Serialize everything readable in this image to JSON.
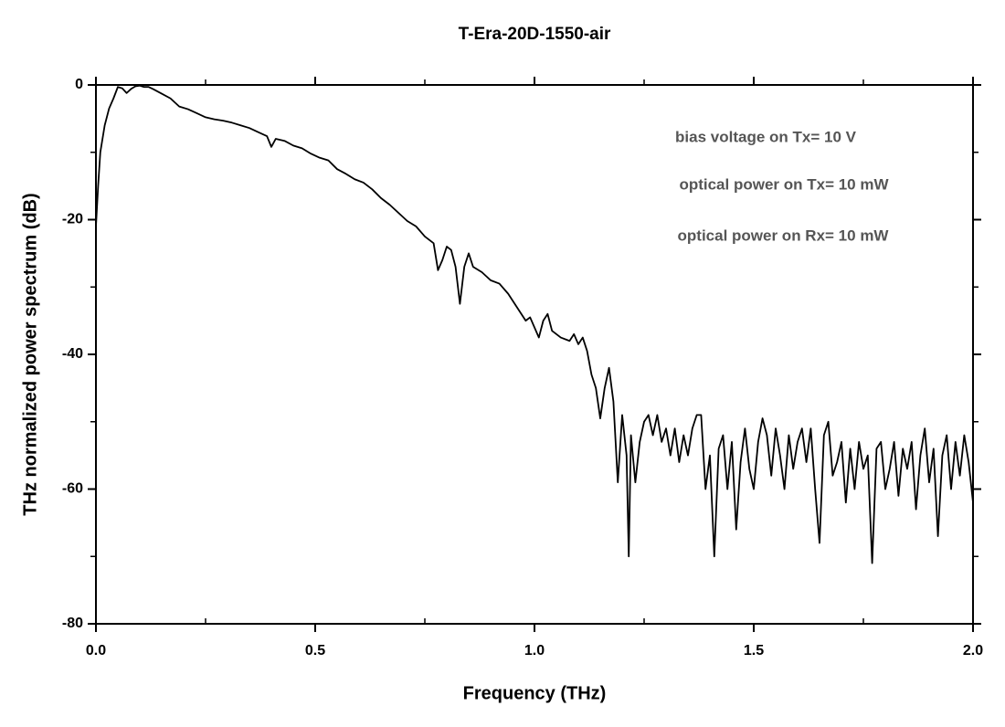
{
  "chart_data": {
    "type": "line",
    "title": "T-Era-20D-1550-air",
    "xlabel": "Frequency (THz)",
    "ylabel": "THz normalized power spectrum (dB)",
    "annotations": [
      "bias voltage on Tx= 10 V",
      "optical power on Tx= 10 mW",
      "optical power on Rx= 10 mW"
    ],
    "xlim": [
      0,
      2
    ],
    "ylim": [
      -80,
      0
    ],
    "xticks": [
      {
        "value": 0,
        "label": "0.0"
      },
      0.5,
      {
        "value": 1,
        "label": "1.0"
      },
      1.5,
      {
        "value": 2,
        "label": "2.0"
      }
    ],
    "xticks_minor": [
      0.25,
      0.75,
      1.25,
      1.75
    ],
    "yticks": [
      0,
      -20,
      -40,
      -60,
      -80
    ],
    "yticks_minor": [
      -10,
      -30,
      -50,
      -70
    ],
    "series": [
      {
        "color": "#000000",
        "x": [
          0,
          0.005,
          0.01,
          0.02,
          0.03,
          0.04,
          0.05,
          0.06,
          0.07,
          0.08,
          0.09,
          0.1,
          0.11,
          0.12,
          0.13,
          0.15,
          0.17,
          0.19,
          0.21,
          0.23,
          0.25,
          0.27,
          0.29,
          0.31,
          0.33,
          0.35,
          0.37,
          0.39,
          0.4,
          0.41,
          0.43,
          0.45,
          0.47,
          0.49,
          0.51,
          0.53,
          0.55,
          0.57,
          0.59,
          0.61,
          0.63,
          0.65,
          0.67,
          0.69,
          0.71,
          0.73,
          0.75,
          0.77,
          0.78,
          0.79,
          0.8,
          0.81,
          0.82,
          0.83,
          0.84,
          0.85,
          0.86,
          0.88,
          0.9,
          0.92,
          0.94,
          0.96,
          0.98,
          0.99,
          1,
          1.01,
          1.02,
          1.03,
          1.04,
          1.06,
          1.08,
          1.09,
          1.1,
          1.11,
          1.12,
          1.13,
          1.14,
          1.15,
          1.16,
          1.17,
          1.18,
          1.19,
          1.2,
          1.21,
          1.215,
          1.22,
          1.23,
          1.24,
          1.25,
          1.26,
          1.27,
          1.28,
          1.29,
          1.3,
          1.31,
          1.32,
          1.33,
          1.34,
          1.35,
          1.36,
          1.37,
          1.38,
          1.39,
          1.4,
          1.41,
          1.42,
          1.43,
          1.44,
          1.45,
          1.46,
          1.47,
          1.48,
          1.49,
          1.5,
          1.51,
          1.52,
          1.53,
          1.54,
          1.55,
          1.56,
          1.57,
          1.58,
          1.59,
          1.6,
          1.61,
          1.62,
          1.63,
          1.64,
          1.65,
          1.66,
          1.67,
          1.68,
          1.69,
          1.7,
          1.71,
          1.72,
          1.73,
          1.74,
          1.75,
          1.76,
          1.77,
          1.78,
          1.79,
          1.8,
          1.81,
          1.82,
          1.83,
          1.84,
          1.85,
          1.86,
          1.87,
          1.88,
          1.89,
          1.9,
          1.91,
          1.92,
          1.93,
          1.94,
          1.95,
          1.96,
          1.97,
          1.98,
          1.99,
          2
        ],
        "values": [
          -21,
          -15,
          -10,
          -6,
          -3.5,
          -2,
          -0.3,
          -0.5,
          -1.2,
          -0.6,
          -0.2,
          -0.1,
          -0.3,
          -0.3,
          -0.6,
          -1.3,
          -2,
          -3.2,
          -3.6,
          -4.2,
          -4.8,
          -5.1,
          -5.3,
          -5.6,
          -6,
          -6.4,
          -7,
          -7.6,
          -9.2,
          -8,
          -8.3,
          -9,
          -9.4,
          -10.2,
          -10.8,
          -11.2,
          -12.5,
          -13.2,
          -14,
          -14.5,
          -15.5,
          -16.8,
          -17.8,
          -19,
          -20.2,
          -21,
          -22.5,
          -23.5,
          -27.5,
          -26,
          -24,
          -24.5,
          -27,
          -32.5,
          -27,
          -25,
          -27,
          -27.8,
          -29,
          -29.5,
          -31,
          -33,
          -35,
          -34.5,
          -36,
          -37.5,
          -35,
          -34,
          -36.5,
          -37.5,
          -38,
          -37,
          -38.5,
          -37.5,
          -39.5,
          -43,
          -45,
          -49.5,
          -45,
          -42,
          -47,
          -59,
          -49,
          -55,
          -70,
          -52,
          -59,
          -53,
          -50,
          -49,
          -52,
          -49,
          -53,
          -51,
          -55,
          -51,
          -56,
          -52,
          -55,
          -51,
          -49,
          -49,
          -60,
          -55,
          -70,
          -54,
          -52,
          -60,
          -53,
          -66,
          -56,
          -51,
          -57,
          -60,
          -53,
          -49.5,
          -52,
          -58,
          -51,
          -55,
          -60,
          -52,
          -57,
          -53,
          -51,
          -56,
          -51,
          -60,
          -68,
          -52,
          -50,
          -58,
          -56,
          -53,
          -62,
          -54,
          -60,
          -53,
          -57,
          -55,
          -71,
          -54,
          -53,
          -60,
          -57,
          -53,
          -61,
          -54,
          -57,
          -53,
          -63,
          -55,
          -51,
          -59,
          -54,
          -67,
          -55,
          -52,
          -60,
          -53,
          -58,
          -52,
          -56,
          -62
        ]
      }
    ]
  }
}
